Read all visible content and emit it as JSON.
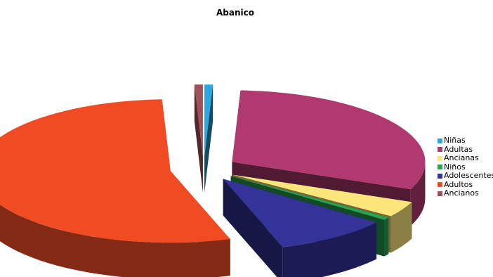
{
  "chart_data": {
    "type": "pie",
    "style": "3d-exploded",
    "title": "Abanico",
    "legend_position": "right",
    "series": [
      {
        "name": "Niñas",
        "value": 0.7,
        "color": "#2aa7e0"
      },
      {
        "name": "Adultas",
        "value": 30.5,
        "color": "#b03a6f"
      },
      {
        "name": "Ancianas",
        "value": 3.6,
        "color": "#fbe67c"
      },
      {
        "name": "Niños",
        "value": 0.6,
        "color": "#27a552"
      },
      {
        "name": "Adolescentes",
        "value": 9.6,
        "color": "#333399"
      },
      {
        "name": "Adultos",
        "value": 54.3,
        "color": "#f04b23"
      },
      {
        "name": "Ancianos",
        "value": 0.7,
        "color": "#a0505a"
      }
    ]
  }
}
